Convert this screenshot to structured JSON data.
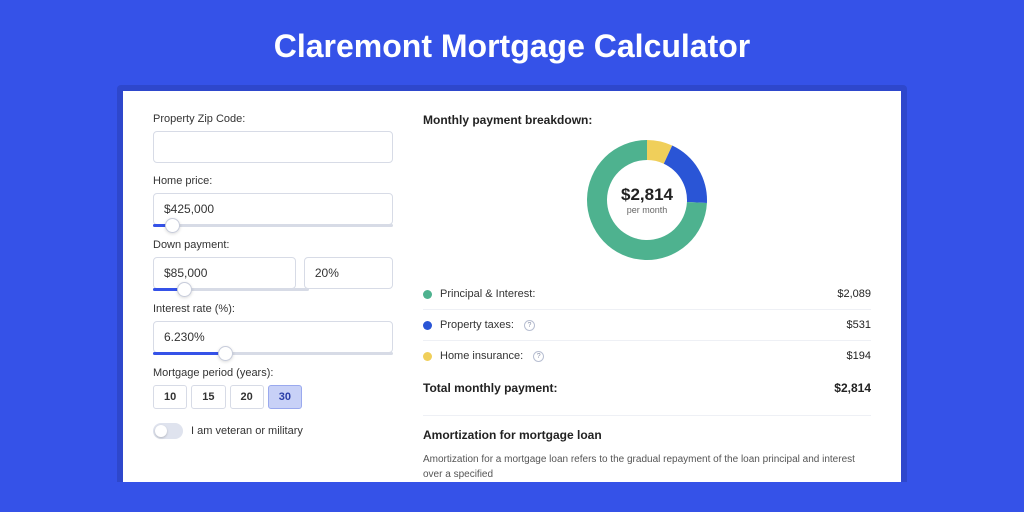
{
  "page": {
    "title": "Claremont Mortgage Calculator",
    "background_color": "#3552e8",
    "outer_card_color": "#2e47cc",
    "card_color": "#ffffff"
  },
  "form": {
    "zip_label": "Property Zip Code:",
    "zip_value": "",
    "home_price_label": "Home price:",
    "home_price_value": "$425,000",
    "home_price_slider_pct": 8,
    "down_payment_label": "Down payment:",
    "down_payment_value": "$85,000",
    "down_payment_pct_value": "20%",
    "down_payment_slider_pct": 20,
    "interest_label": "Interest rate (%):",
    "interest_value": "6.230%",
    "interest_slider_pct": 30,
    "period_label": "Mortgage period (years):",
    "period_options": [
      "10",
      "15",
      "20",
      "30"
    ],
    "period_active": "30",
    "veteran_label": "I am veteran or military",
    "veteran_on": false
  },
  "breakdown": {
    "title": "Monthly payment breakdown:",
    "center_amount": "$2,814",
    "center_sub": "per month",
    "donut": {
      "type": "donut",
      "slices": [
        {
          "label": "Principal & Interest:",
          "value": 2089,
          "display": "$2,089",
          "color": "#4eb28f",
          "pct": 74.2
        },
        {
          "label": "Property taxes:",
          "value": 531,
          "display": "$531",
          "color": "#2a55d6",
          "pct": 18.9,
          "info": true
        },
        {
          "label": "Home insurance:",
          "value": 194,
          "display": "$194",
          "color": "#f0cf5a",
          "pct": 6.9,
          "info": true
        }
      ],
      "ring_outer_r": 60,
      "ring_inner_r": 40,
      "background": "#ffffff"
    },
    "total_label": "Total monthly payment:",
    "total_value": "$2,814"
  },
  "amortization": {
    "title": "Amortization for mortgage loan",
    "text": "Amortization for a mortgage loan refers to the gradual repayment of the loan principal and interest over a specified"
  }
}
